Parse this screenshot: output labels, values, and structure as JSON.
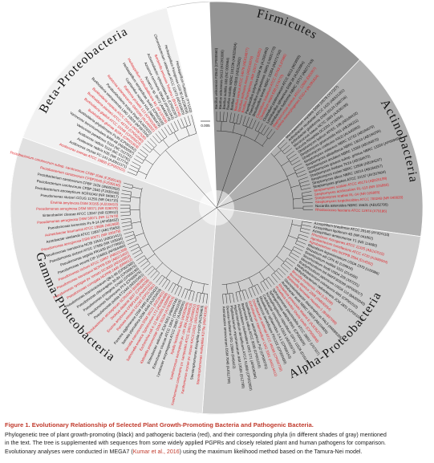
{
  "figure": {
    "scale_label": "0.005",
    "sectors": [
      {
        "name": "Firmicutes",
        "fill": "#959595",
        "start": -2,
        "end": 44,
        "labelAngle": 21,
        "labelSide": "outer"
      },
      {
        "name": "Actinobacteria",
        "fill": "#b0b0b0",
        "start": 44,
        "end": 98,
        "labelAngle": 70,
        "labelSide": "outer"
      },
      {
        "name": "Alpha-Proteobacteria",
        "fill": "#cdcdcd",
        "start": 98,
        "end": 184,
        "labelAngle": 137,
        "labelSide": "inner"
      },
      {
        "name": "Gamma-Proteobacteria",
        "fill": "#e1e1e1",
        "start": 184,
        "end": 290,
        "labelAngle": 235,
        "labelSide": "inner"
      },
      {
        "name": "Beta-Proteobacteria",
        "fill": "#f1f1f1",
        "start": 290,
        "end": 346,
        "labelAngle": 316,
        "labelSide": "outer"
      }
    ],
    "colors": {
      "pgpr": "#111111",
      "pathogen": "#e0252b"
    },
    "leaves": [
      {
        "t": "Bacillus velezensis FZB42 (CP000560)",
        "c": "k",
        "a": 0
      },
      {
        "t": "Bacillus velezensis SH13 (KC261886)",
        "c": "k",
        "a": 2.2
      },
      {
        "t": "Bacillus subtilis 168 (NC 000964)",
        "c": "k",
        "a": 4.4
      },
      {
        "t": "Bacillus subtilis NBRC 101239 (AB325584)",
        "c": "k",
        "a": 6.6
      },
      {
        "t": "Bacillus subtilis GB03 (AB325582)",
        "c": "k",
        "a": 8.8
      },
      {
        "t": "Bacillus cereus ATCC 14579 (AE016877)",
        "c": "r",
        "a": 11
      },
      {
        "t": "Bacillus anthracis Ames (AE016879)",
        "c": "r",
        "a": 13.2
      },
      {
        "t": "Bacillus thuringiensis IAM 12077 (D16281)",
        "c": "r",
        "a": 15.4
      },
      {
        "t": "Paenibacillus polymyxa DSM 36 (AJ320493)",
        "c": "k",
        "a": 17.6
      },
      {
        "t": "Paenibacillus riograndensis SBR5 (LN831776)",
        "c": "k",
        "a": 19.8
      },
      {
        "t": "Brevibacillus brevis NBRC 15304 (AB271756)",
        "c": "k",
        "a": 22
      },
      {
        "t": "Clostridium botulinum ATCC 25763 (L37585)",
        "c": "r",
        "a": 24.2
      },
      {
        "t": "Clostridium tetani E88 (X74770)",
        "c": "r",
        "a": 26.4
      },
      {
        "t": "Clostridium pasteurianum ATCC 6013 (M23930)",
        "c": "k",
        "a": 28.6
      },
      {
        "t": "Lysinibacillus sphaericus DSM 28 (AJ310084)",
        "c": "k",
        "a": 30.8
      },
      {
        "t": "Lysinibacillus fusiformis NBRC 15717 (AB271743)",
        "c": "k",
        "a": 33
      },
      {
        "t": "Staphylococcus aureus ATCC 12600 (D83357)",
        "c": "r",
        "a": 35.2
      },
      {
        "t": "Listeria monocytogenes EGD-e (AL591824)",
        "c": "r",
        "a": 37.4
      },
      {
        "t": "Microbacterium oxydans DSM 20578 (Y17227)",
        "c": "k",
        "a": 45
      },
      {
        "t": "Arthrobacter nicotianae ATCC 1425 (AB531281)",
        "c": "k",
        "a": 47.2
      },
      {
        "t": "Arthrobacter globiformis DSM 20124 (X80736)",
        "c": "k",
        "a": 49.4
      },
      {
        "t": "Micrococcus luteus NCTC 2665 (AJ536198)",
        "c": "k",
        "a": 51.6
      },
      {
        "t": "Kocuria rhizophila DC2201 (Y16264)",
        "c": "k",
        "a": 53.8
      },
      {
        "t": "Streptomyces lydicus WYEC 108 (AB184432)",
        "c": "k",
        "a": 56
      },
      {
        "t": "Streptomyces griseoviridis K61 (AB184211)",
        "c": "k",
        "a": 58.2
      },
      {
        "t": "Streptomyces coelicolor A3(2) (AL645882)",
        "c": "k",
        "a": 60.4
      },
      {
        "t": "Streptomyces violaceus NBRC 12762 (AB184076)",
        "c": "k",
        "a": 62.6
      },
      {
        "t": "Streptomyces albidoflavus NBRC 13010 (AB184255)",
        "c": "k",
        "a": 64.8
      },
      {
        "t": "Streptomyces anulatus NBRC 13369 (AB184875)",
        "c": "k",
        "a": 67
      },
      {
        "t": "Streptomyces griseus subsp. griseus NBRC 13350 (AP009493)",
        "c": "k",
        "a": 69.2
      },
      {
        "t": "Streptomyces lividans TK24 (AB184575)",
        "c": "k",
        "a": 71.4
      },
      {
        "t": "Streptomyces rochei NBRC 12908 (AB184237)",
        "c": "k",
        "a": 73.6
      },
      {
        "t": "Streptomyces albus NBRC 13014 (AB184257)",
        "c": "k",
        "a": 75.8
      },
      {
        "t": "Streptomyces griseus ATCC 10137 (AY207604)",
        "c": "k",
        "a": 78
      },
      {
        "t": "Streptomyces scabiei ATCC 49173 (AB026199)",
        "c": "r",
        "a": 80.2
      },
      {
        "t": "Streptomyces acidiscabies RL-110 (NR 025865)",
        "c": "r",
        "a": 82.4
      },
      {
        "t": "Streptomyces scabiei RL-34 (NR 025865)",
        "c": "r",
        "a": 84.6
      },
      {
        "t": "Streptomyces turgidiscabies ATCC 700248 (NR 040828)",
        "c": "r",
        "a": 86.8
      },
      {
        "t": "Nocardia asteroides NBRC 15531 (AB162795)",
        "c": "k",
        "a": 89
      },
      {
        "t": "Rhodococcus fascians ATCC 12974 (X79186)",
        "c": "r",
        "a": 91.2
      },
      {
        "t": "Azospirillum brasilense ATCC 29145 (AY324110)",
        "c": "k",
        "a": 99
      },
      {
        "t": "Azospirillum lipoferum 4B (NR 041802)",
        "c": "k",
        "a": 101.2
      },
      {
        "t": "Azospirillum amazonense Y1 (NR 114680)",
        "c": "k",
        "a": 103.4
      },
      {
        "t": "Rhizobium rhizogenes ATCC 11325 (AB247615)",
        "c": "r",
        "a": 105.6
      },
      {
        "t": "Agrobacterium tumefaciens ATCC 4720 (AJ389904)",
        "c": "r",
        "a": 107.8
      },
      {
        "t": "Agrobacterium vitis NCPPB 3554 (D14502)",
        "c": "r",
        "a": 110
      },
      {
        "t": "Rhizobium leguminosarum USDA 2370 (U29386)",
        "c": "k",
        "a": 112.2
      },
      {
        "t": "Rhizobium etli CFN 42 (U28916)",
        "c": "k",
        "a": 114.4
      },
      {
        "t": "Sinorhizobium meliloti 1021 (D14509)",
        "c": "k",
        "a": 116.6
      },
      {
        "t": "Sinorhizobium fredii USDA 205 (X67231)",
        "c": "k",
        "a": 118.8
      },
      {
        "t": "Mesorhizobium loti MAFF303099 (AP003017)",
        "c": "k",
        "a": 121
      },
      {
        "t": "Bradyrhizobium japonicum USDA 110 (BA000040)",
        "c": "k",
        "a": 123.2
      },
      {
        "t": "Methylobacterium extorquens AM1 (CP001510)",
        "c": "k",
        "a": 125.4
      },
      {
        "t": "Methylobacterium radiotolerans JCM 2831 (CP001001)",
        "c": "k",
        "a": 127.6
      },
      {
        "t": "Brucella melitensis 16M (L26166)",
        "c": "r",
        "a": 129.8
      },
      {
        "t": "Brucella abortus 2308 (AM040264)",
        "c": "r",
        "a": 132
      },
      {
        "t": "Bartonella henselae Houston-1 (BX897699)",
        "c": "r",
        "a": 134.2
      },
      {
        "t": "Gluconacetobacter diazotrophicus PAL5 (AM889285)",
        "c": "k",
        "a": 136.4
      },
      {
        "t": "Acetobacter aceti NBRC 14818 (AB104835)",
        "c": "k",
        "a": 138.6
      },
      {
        "t": "Rickettsia prowazekii Madrid E (AJ235272)",
        "c": "r",
        "a": 140.8
      },
      {
        "t": "Rickettsia rickettsii Sheila Smith (CP000848)",
        "c": "r",
        "a": 143
      },
      {
        "t": "Sphingomonas paucimobilis ATCC 29837 (U37337)",
        "c": "k",
        "a": 145.2
      },
      {
        "t": "Sphingomonas wittichii RW1 (CP000699)",
        "c": "k",
        "a": 147.4
      },
      {
        "t": "Novosphingobium capsulatum GIFU 11526 (D16147)",
        "c": "k",
        "a": 149.6
      },
      {
        "t": "Caulobacter crescentus CB15 (AE005673)",
        "c": "k",
        "a": 151.8
      },
      {
        "t": "Rhodobacter sphaeroides 2.4.1 (CP000143)",
        "c": "k",
        "a": 154
      },
      {
        "t": "Paracoccus denitrificans PD1222 (CP000489)",
        "c": "k",
        "a": 156.2
      },
      {
        "t": "Ochrobactrum anthropi ATCC 49188 (CP000758)",
        "c": "r",
        "a": 158.4
      },
      {
        "t": "Ochrobactrum intermedium LMG 3301 (AM114411)",
        "c": "r",
        "a": 160.6
      },
      {
        "t": "Xanthobacter autotrophicus Py2 (CP000781)",
        "c": "k",
        "a": 162.8
      },
      {
        "t": "Beijerinckia indica ATCC 9039 (CP001016)",
        "c": "k",
        "a": 165
      },
      {
        "t": "Azorhizobium caulinodans ORS 571 (AP009384)",
        "c": "k",
        "a": 167.2
      },
      {
        "t": "Hyphomicrobium denitrificans ATCC 51888 (CP002083)",
        "c": "k",
        "a": 169.4
      },
      {
        "t": "Phyllobacterium myrsinacearum IAM 13584 (D12789)",
        "c": "k",
        "a": 171.6
      },
      {
        "t": "Devosia riboflavina IFO 13584 (D49423)",
        "c": "k",
        "a": 173.8
      },
      {
        "t": "Aminobacter aminovorans DSM 7048 (AJ011759)",
        "c": "k",
        "a": 176
      },
      {
        "t": "Stenotrophomonas maltophilia K279a (AM743169)",
        "c": "r",
        "a": 186
      },
      {
        "t": "Stenotrophomonas rhizophila e-p10 (AJ293463)",
        "c": "k",
        "a": 188.2
      },
      {
        "t": "Xanthomonas oryzae pv. oryzae KACC10331 (AE013598)",
        "c": "r",
        "a": 190.4
      },
      {
        "t": "Xanthomonas campestris pv. campestris ATCC 33913 (AE008922)",
        "c": "r",
        "a": 192.6
      },
      {
        "t": "Xanthomonas axonopodis pv. citri 306 (AE008923)",
        "c": "r",
        "a": 194.8
      },
      {
        "t": "Xylella fastidiosa 9a5c (AE003849)",
        "c": "r",
        "a": 197
      },
      {
        "t": "Lysobacter enzymogenes ATCC 29487 (AJ298291)",
        "c": "k",
        "a": 199.2
      },
      {
        "t": "Enterobacter cloacae ATCC 13047 (CP001918)",
        "c": "k",
        "a": 201.4
      },
      {
        "t": "Enterobacter asburiae JCM 6051 (AB004744)",
        "c": "k",
        "a": 203.6
      },
      {
        "t": "Klebsiella pneumoniae DSM 30104 (AJ783916)",
        "c": "r",
        "a": 205.8
      },
      {
        "t": "Escherichia coli K-12 MG1655 (U00096)",
        "c": "r",
        "a": 208
      },
      {
        "t": "Salmonella enterica Typhimurium LT2 (AE006468)",
        "c": "r",
        "a": 210.2
      },
      {
        "t": "Serratia marcescens DSM 30121 (AJ233431)",
        "c": "r",
        "a": 212.4
      },
      {
        "t": "Serratia plymuthica DSM 4540 (AJ233433)",
        "c": "k",
        "a": 214.6
      },
      {
        "t": "Pantoea agglomerans DSM 3493 (AJ233423)",
        "c": "k",
        "a": 216.8
      },
      {
        "t": "Pantoea stewartii DC283 (CP017581)",
        "c": "r",
        "a": 219
      },
      {
        "t": "Erwinia amylovora CFBP1430 (FN434113)",
        "c": "r",
        "a": 221.2
      },
      {
        "t": "Dickeya dadantii 3937 (CP002038)",
        "c": "r",
        "a": 223.4
      },
      {
        "t": "Pectobacterium atrosepticum SCRI1043 (BX950851)",
        "c": "r",
        "a": 225.6
      },
      {
        "t": "Pseudomonas putida KT2440 (AE015451)",
        "c": "k",
        "a": 227.8
      },
      {
        "t": "Pseudomonas fluorescens Pf-5 (CP000076)",
        "c": "k",
        "a": 230
      },
      {
        "t": "Pseudomonas protegens CHA0 (CP003190)",
        "c": "k",
        "a": 232.2
      },
      {
        "t": "Pseudomonas chlororaphis 30-84 (CP009576)",
        "c": "k",
        "a": 234.4
      },
      {
        "t": "Pseudomonas brassicacearum Q8r1-96 (CP002585)",
        "c": "k",
        "a": 236.6
      },
      {
        "t": "Pseudomonas corrugata NCPPB 2445 (D84012)",
        "c": "r",
        "a": 238.8
      },
      {
        "t": "Pseudomonas syringae pv. tomato DC3000 (AE016853)",
        "c": "r",
        "a": 241
      },
      {
        "t": "Pseudomonas savastanoi NCPPB 639 (AB021402)",
        "c": "r",
        "a": 243.2
      },
      {
        "t": "Pseudomonas cichorii ATCC 10857 (AB021398)",
        "c": "r",
        "a": 245.4
      },
      {
        "t": "Pseudomonas veronii CIP 104663 (AF064460)",
        "c": "k",
        "a": 247.6
      },
      {
        "t": "Pseudomonas segetis FR1439 (AY770691)",
        "c": "k",
        "a": 249.8
      },
      {
        "t": "Pseudomonas stutzeri ATCC 17588 (NR 103934)",
        "c": "k",
        "a": 252
      },
      {
        "t": "Pseudomonas mendocina NCIB 10541 (AB021411)",
        "c": "k",
        "a": 254.2
      },
      {
        "t": "Pseudomonas aeruginosa DSM 50071 (NR 026078)",
        "c": "r",
        "a": 256.4
      },
      {
        "t": "Azotobacter vinelandii ATCC 12837 (AB175650)",
        "c": "k",
        "a": 258.6
      },
      {
        "t": "Acinetobacter baumannii ATCC 19606 (X81660)",
        "c": "r",
        "a": 260.8
      },
      {
        "t": "Pseudomonas koreensis Ps 9-14 (AF468452)",
        "c": "k",
        "a": 263
      },
      {
        "t": "Pseudomonas aeruginosa DSM 50071 (NR 117678)",
        "c": "r",
        "a": 265.2
      },
      {
        "t": "Enterobacter cloacae ATCC 13047 (NR 028912)",
        "c": "k",
        "a": 267.4
      },
      {
        "t": "Pseudomonas aeruginosa DSM 50071 (NR 026078)",
        "c": "r",
        "a": 269.6
      },
      {
        "t": "Erwinia amylovora DSM 30165 (AJ233410)",
        "c": "r",
        "a": 271.8
      },
      {
        "t": "Pseudomonas stutzeri CCUG 11256 (NR 041715)",
        "c": "k",
        "a": 274
      },
      {
        "t": "Pectobacterium atrosepticum SCRI1043 (NR 040817)",
        "c": "k",
        "a": 276.2
      },
      {
        "t": "Pectobacterium carotovorum CFBP 2046 (FJ539146)",
        "c": "k",
        "a": 278.4
      },
      {
        "t": "Pectobacterium carotovorum CFBP 1526 (JN600332)",
        "c": "k",
        "a": 280.6
      },
      {
        "t": "Pectobacterium carotovorum CFBP2046 (FJ539146)",
        "c": "r",
        "a": 282.8
      },
      {
        "t": "Pectobacterium carotovorum subsp. carotovorum CFBP 2046 (FJ539146)",
        "c": "r",
        "a": 285
      },
      {
        "t": "Acidovorax avenae ATCC 19860 (CP002521)",
        "c": "r",
        "a": 292
      },
      {
        "t": "Acidovorax oryzae FC-143 (AJ0911371)",
        "c": "k",
        "a": 294.2
      },
      {
        "t": "Acidovorax radicis N35 (NR 117774)",
        "c": "k",
        "a": 296.4
      },
      {
        "t": "Acidovorax radicis S110 (NC 012791)",
        "c": "k",
        "a": 298.6
      },
      {
        "t": "Variovorax paradoxus S110 (NC 012791)",
        "c": "k",
        "a": 300.8
      },
      {
        "t": "Variovorax boronicumulans BAM-48 (AB300597)",
        "c": "k",
        "a": 303
      },
      {
        "t": "Burkholderia phytofirmans PsJN (CP001052)",
        "c": "k",
        "a": 305.2
      },
      {
        "t": "Burkholderia glumae BGR1 (CP001503)",
        "c": "r",
        "a": 307.4
      },
      {
        "t": "Burkholderia gladioli ATCC 10248 (CP009323)",
        "c": "r",
        "a": 309.6
      },
      {
        "t": "Burkholderia plantarii ATCC 43733 (CP002580)",
        "c": "r",
        "a": 311.8
      },
      {
        "t": "Burkholderia cepacia ATCC 25416 (AF097530)",
        "c": "r",
        "a": 314
      },
      {
        "t": "Burkholderia vietnamiensis LMG 10929 (AF097534)",
        "c": "k",
        "a": 316.2
      },
      {
        "t": "Paraburkholderia tropica Ppe8 (AJ420332)",
        "c": "k",
        "a": 318.4
      },
      {
        "t": "Ralstonia solanacearum GMI1000 (AL646052)",
        "c": "r",
        "a": 320.6
      },
      {
        "t": "Ralstonia pickettii 12J (CP001068)",
        "c": "r",
        "a": 322.8
      },
      {
        "t": "Cupriavidus necator H16 (AM260479)",
        "c": "k",
        "a": 325
      },
      {
        "t": "Herbaspirillum seropedicae SmR1 (CP002039)",
        "c": "k",
        "a": 327.2
      },
      {
        "t": "Herbaspirillum rubrisubalbicans M1 (AF137508)",
        "c": "r",
        "a": 329.4
      },
      {
        "t": "Azoarcus sp. BH72 (AM406670)",
        "c": "k",
        "a": 331.6
      },
      {
        "t": "Azoarcus communis SWub3 (AF011343)",
        "c": "k",
        "a": 333.8
      },
      {
        "t": "Achromobacter xylosoxidans A8 (CP002287)",
        "c": "k",
        "a": 336
      },
      {
        "t": "Bordetella pertussis Tohama I (BX470248)",
        "c": "r",
        "a": 338.2
      },
      {
        "t": "Chromobacterium violaceum ATCC 12472 (AE016825)",
        "c": "k",
        "a": 340.4
      },
      {
        "t": "Herbaspirillum frisingense GSF30 (AJ238358)",
        "c": "k",
        "a": 342.6
      },
      {
        "t": "Herbaspirillum huttiense (YY1192)",
        "c": "k",
        "a": 344.8
      }
    ]
  },
  "caption": {
    "title": "Figure 1.  Evolutionary Relationship of Selected Plant Growth-Promoting Bacteria and Pathogenic Bacteria.",
    "line1": "Phylogenetic tree of plant growth-promoting (black) and pathogenic bacteria (red), and their corresponding phyla (in different shades of gray) mentioned",
    "line2": "in the text. The tree is supplemented with sequences from some widely applied PGPRs and closely related plant and human pathogens for comparison.",
    "line3_pre": "Evolutionary analyses were conducted in MEGA7 (",
    "line3_ref": "Kumar et al., 2016",
    "line3_post": ") using the maximum likelihood method based on the Tamura-Nei model."
  }
}
